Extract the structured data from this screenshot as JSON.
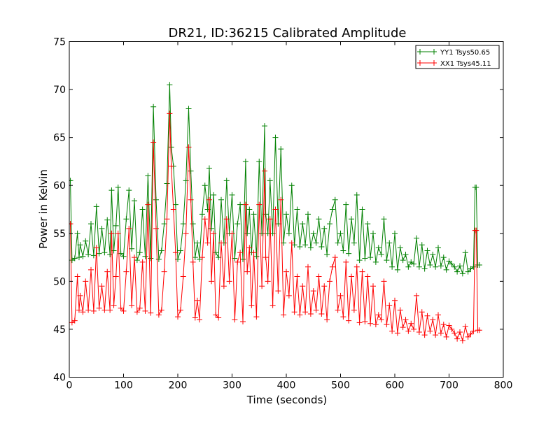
{
  "chart_data": {
    "type": "line",
    "title": "DR21, ID:36215 Calibrated Amplitude",
    "xlabel": "Time (seconds)",
    "ylabel": "Power in Kelvin",
    "xlim": [
      0,
      800
    ],
    "ylim": [
      40,
      75
    ],
    "xticks": [
      "0",
      "100",
      "200",
      "300",
      "400",
      "500",
      "600",
      "700",
      "800"
    ],
    "yticks": [
      "40",
      "45",
      "50",
      "55",
      "60",
      "65",
      "70",
      "75"
    ],
    "grid": false,
    "legend_position": "top-right",
    "marker": "+",
    "series": [
      {
        "name": "YY1 Tsys50.65",
        "color": "#008000",
        "x": [
          0,
          2,
          5,
          10,
          15,
          18,
          20,
          25,
          30,
          35,
          40,
          45,
          50,
          55,
          60,
          65,
          70,
          75,
          78,
          82,
          86,
          90,
          95,
          100,
          105,
          110,
          115,
          120,
          125,
          130,
          135,
          140,
          145,
          150,
          155,
          160,
          165,
          170,
          175,
          180,
          185,
          188,
          192,
          196,
          200,
          205,
          210,
          215,
          220,
          224,
          228,
          232,
          236,
          240,
          245,
          250,
          255,
          258,
          262,
          266,
          270,
          275,
          280,
          285,
          290,
          295,
          300,
          305,
          310,
          315,
          320,
          325,
          328,
          332,
          336,
          340,
          345,
          350,
          355,
          360,
          362,
          366,
          370,
          375,
          380,
          385,
          390,
          395,
          400,
          405,
          410,
          415,
          420,
          425,
          430,
          435,
          440,
          445,
          450,
          455,
          460,
          465,
          470,
          475,
          480,
          485,
          490,
          495,
          500,
          505,
          510,
          515,
          520,
          525,
          530,
          535,
          540,
          545,
          550,
          555,
          560,
          565,
          570,
          575,
          580,
          585,
          590,
          595,
          600,
          605,
          610,
          615,
          620,
          625,
          630,
          635,
          640,
          645,
          650,
          655,
          660,
          665,
          670,
          675,
          680,
          685,
          690,
          695,
          700,
          705,
          710,
          715,
          720,
          725,
          730,
          735,
          740,
          745,
          748,
          750,
          753,
          756
        ],
        "y": [
          60.5,
          60.5,
          52.2,
          52.4,
          55.0,
          52.5,
          53.8,
          52.6,
          54.2,
          52.8,
          56.0,
          52.7,
          57.8,
          52.9,
          55.5,
          53.0,
          56.4,
          52.8,
          59.5,
          53.2,
          55.8,
          59.8,
          52.9,
          52.6,
          56.5,
          59.5,
          53.4,
          58.4,
          52.2,
          53.0,
          57.5,
          52.6,
          61.0,
          52.4,
          68.2,
          58.5,
          52.3,
          53.2,
          56.0,
          60.2,
          70.5,
          64.0,
          62.0,
          58.0,
          52.3,
          53.2,
          56.0,
          60.5,
          68.0,
          61.5,
          56.0,
          52.5,
          54.0,
          52.3,
          57.0,
          60.0,
          57.5,
          61.8,
          55.5,
          59.0,
          53.0,
          52.5,
          58.5,
          54.0,
          60.5,
          55.0,
          59.0,
          52.4,
          56.0,
          58.0,
          52.3,
          62.5,
          55.0,
          57.5,
          53.0,
          57.0,
          52.6,
          62.5,
          55.0,
          66.2,
          57.0,
          55.0,
          60.5,
          55.0,
          65.0,
          56.0,
          63.8,
          54.0,
          57.0,
          55.0,
          60.0,
          53.8,
          57.5,
          53.6,
          56.0,
          53.8,
          57.0,
          53.5,
          55.0,
          54.0,
          56.5,
          53.6,
          55.5,
          52.8,
          56.0,
          57.5,
          58.5,
          54.0,
          55.0,
          53.2,
          58.0,
          52.9,
          56.5,
          54.0,
          59.0,
          52.2,
          57.5,
          52.4,
          56.0,
          52.5,
          55.0,
          52.0,
          53.5,
          52.8,
          56.5,
          52.2,
          54.0,
          51.5,
          55.0,
          51.2,
          53.5,
          52.2,
          52.8,
          51.5,
          52.0,
          51.8,
          54.5,
          51.5,
          53.8,
          51.3,
          53.2,
          51.7,
          52.8,
          51.5,
          53.5,
          51.6,
          52.5,
          51.2,
          52.1,
          51.8,
          51.5,
          51.0,
          51.6,
          50.8,
          53.0,
          51.0,
          51.3,
          51.5,
          59.8,
          59.8,
          51.7,
          51.7
        ]
      },
      {
        "name": "XX1 Tsys45.11",
        "color": "#ff0000",
        "x": [
          0,
          2,
          5,
          10,
          15,
          18,
          20,
          25,
          30,
          35,
          40,
          45,
          50,
          55,
          60,
          65,
          70,
          75,
          78,
          82,
          86,
          90,
          95,
          100,
          105,
          110,
          115,
          120,
          125,
          130,
          135,
          140,
          145,
          150,
          155,
          160,
          165,
          170,
          175,
          180,
          185,
          188,
          192,
          196,
          200,
          205,
          210,
          215,
          220,
          224,
          228,
          232,
          236,
          240,
          245,
          250,
          255,
          258,
          262,
          266,
          270,
          275,
          280,
          285,
          290,
          295,
          300,
          305,
          310,
          315,
          320,
          325,
          328,
          332,
          336,
          340,
          345,
          350,
          355,
          360,
          362,
          366,
          370,
          375,
          380,
          385,
          390,
          395,
          400,
          405,
          410,
          415,
          420,
          425,
          430,
          435,
          440,
          445,
          450,
          455,
          460,
          465,
          470,
          475,
          480,
          485,
          490,
          495,
          500,
          505,
          510,
          515,
          520,
          525,
          530,
          535,
          540,
          545,
          550,
          555,
          560,
          565,
          570,
          575,
          580,
          585,
          590,
          595,
          600,
          605,
          610,
          615,
          620,
          625,
          630,
          635,
          640,
          645,
          650,
          655,
          660,
          665,
          670,
          675,
          680,
          685,
          690,
          695,
          700,
          705,
          710,
          715,
          720,
          725,
          730,
          735,
          740,
          745,
          748,
          750,
          753,
          756
        ],
        "y": [
          56.0,
          56.0,
          45.7,
          45.9,
          50.5,
          47.0,
          48.5,
          46.8,
          50.0,
          47.0,
          51.2,
          46.9,
          53.5,
          47.2,
          49.5,
          47.0,
          51.0,
          47.0,
          55.0,
          47.5,
          50.5,
          55.0,
          47.2,
          46.9,
          51.0,
          55.5,
          47.5,
          52.5,
          46.8,
          47.2,
          52.0,
          46.9,
          58.0,
          46.7,
          64.5,
          55.5,
          46.5,
          47.0,
          51.0,
          56.5,
          67.5,
          62.0,
          57.5,
          53.0,
          46.3,
          47.0,
          50.5,
          55.0,
          64.0,
          58.5,
          52.0,
          46.2,
          48.0,
          46.0,
          52.5,
          56.5,
          54.0,
          58.5,
          50.0,
          55.0,
          46.5,
          46.2,
          54.0,
          49.5,
          56.5,
          50.0,
          55.0,
          46.0,
          52.0,
          53.0,
          45.8,
          58.0,
          51.0,
          53.5,
          47.5,
          53.0,
          46.3,
          58.0,
          49.5,
          61.5,
          52.5,
          50.0,
          56.5,
          47.5,
          57.5,
          49.0,
          58.5,
          46.5,
          51.0,
          48.5,
          54.0,
          46.8,
          50.5,
          46.5,
          49.5,
          46.8,
          51.5,
          46.6,
          49.0,
          47.0,
          50.5,
          46.6,
          49.5,
          46.0,
          50.0,
          51.5,
          52.5,
          47.0,
          48.5,
          46.3,
          52.0,
          45.9,
          50.5,
          47.0,
          51.5,
          45.7,
          51.0,
          45.8,
          50.5,
          45.6,
          49.5,
          45.5,
          46.5,
          46.0,
          50.0,
          45.5,
          47.5,
          44.8,
          48.0,
          44.6,
          47.0,
          45.2,
          46.0,
          44.8,
          45.6,
          45.0,
          48.5,
          44.7,
          46.8,
          44.4,
          46.4,
          44.8,
          46.0,
          44.4,
          46.5,
          44.6,
          45.5,
          44.2,
          45.4,
          45.0,
          44.6,
          44.0,
          44.7,
          43.8,
          45.3,
          44.2,
          44.5,
          44.8,
          55.3,
          55.3,
          44.9,
          44.9
        ]
      }
    ]
  }
}
